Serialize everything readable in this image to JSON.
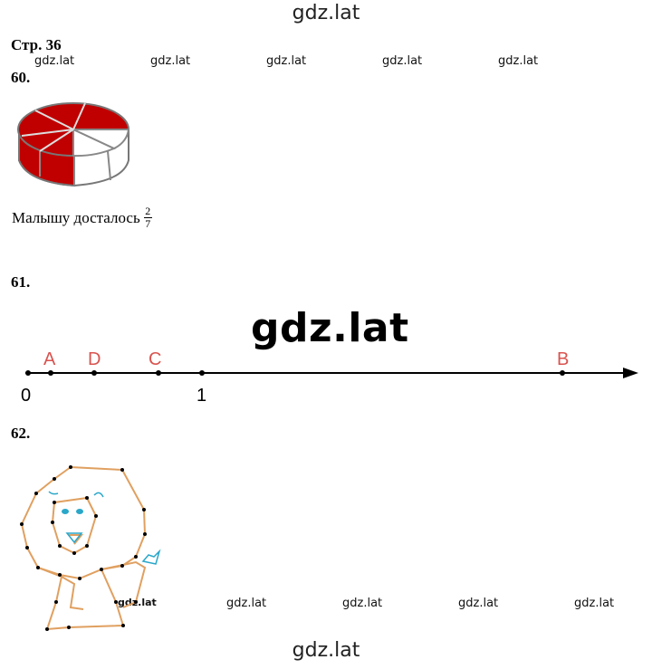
{
  "watermark": "gdz.lat",
  "page_label": "Стр. 36",
  "tasks": {
    "t60": {
      "number": "60.",
      "caption": "Малышу досталось",
      "fraction": {
        "numerator": "2",
        "denominator": "7"
      },
      "pie": {
        "slices": 7,
        "filled": 5,
        "fill_color": "#c00000",
        "empty_color": "#ffffff"
      }
    },
    "t61": {
      "number": "61.",
      "number_line": {
        "zero_label": "0",
        "one_label": "1",
        "points": [
          {
            "label": "A",
            "color": "#d9534f"
          },
          {
            "label": "D",
            "color": "#d9534f"
          },
          {
            "label": "C",
            "color": "#d9534f"
          },
          {
            "label": "B",
            "color": "#d9534f"
          }
        ]
      }
    },
    "t62": {
      "number": "62.",
      "drawing": "lion-connect-the-dots",
      "line_color": "#e0a060",
      "accent_color": "#2aa7c9"
    }
  }
}
